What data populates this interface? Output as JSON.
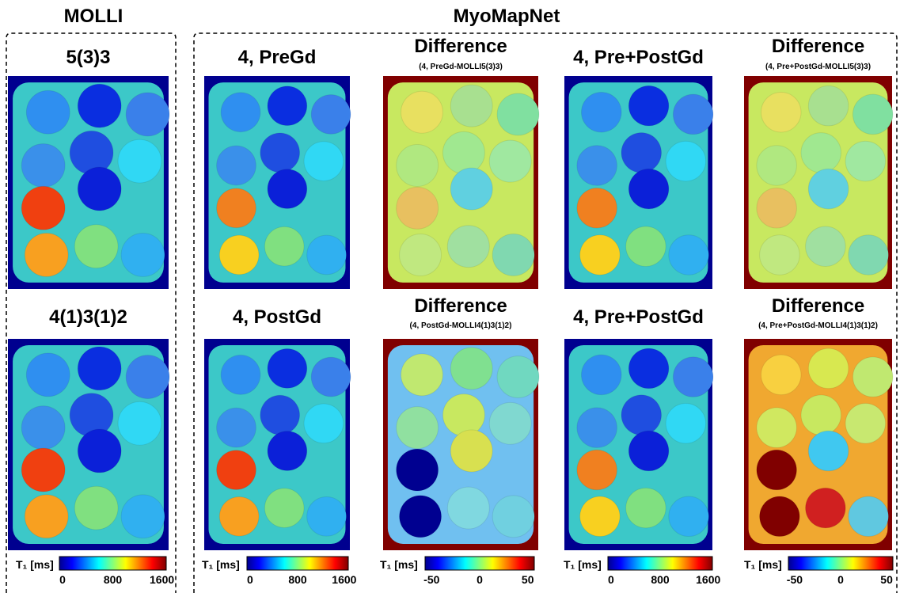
{
  "groups": [
    {
      "label": "MOLLI"
    },
    {
      "label": "MyoMapNet"
    }
  ],
  "panels": [
    {
      "title": "5(3)3"
    },
    {
      "title": "4, PreGd"
    },
    {
      "title": "Difference",
      "subtitle": "(4, PreGd-MOLLI5(3)3)"
    },
    {
      "title": "4, Pre+PostGd"
    },
    {
      "title": "Difference",
      "subtitle": "(4, Pre+PostGd-MOLLI5(3)3)"
    },
    {
      "title": "4(1)3(1)2"
    },
    {
      "title": "4, PostGd"
    },
    {
      "title": "Difference",
      "subtitle": "(4, PostGd-MOLLI4(1)3(1)2)"
    },
    {
      "title": "4, Pre+PostGd"
    },
    {
      "title": "Difference",
      "subtitle": "(4, Pre+PostGd-MOLLI4(1)3(1)2)"
    }
  ],
  "colorbars": [
    {
      "label": "T₁ [ms]",
      "ticks": [
        0,
        800,
        1600
      ]
    },
    {
      "label": "T₁ [ms]",
      "ticks": [
        0,
        800,
        1600
      ]
    },
    {
      "label": "T₁ [ms]",
      "ticks": [
        -50,
        0,
        50
      ]
    },
    {
      "label": "T₁ [ms]",
      "ticks": [
        0,
        800,
        1600
      ]
    },
    {
      "label": "T₁ [ms]",
      "ticks": [
        -50,
        0,
        50
      ]
    }
  ]
}
